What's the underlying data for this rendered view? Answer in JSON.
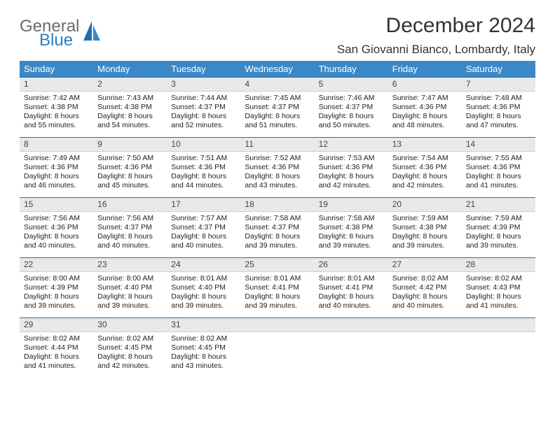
{
  "brand": {
    "word1": "General",
    "word2": "Blue",
    "color1": "#6b6b6b",
    "color2": "#2a7fbf"
  },
  "title": "December 2024",
  "location": "San Giovanni Bianco, Lombardy, Italy",
  "theme": {
    "header_bg": "#3a88c8",
    "header_fg": "#ffffff",
    "daynum_bg": "#e9e9e9",
    "rule": "#2a6ea5"
  },
  "weekdays": [
    "Sunday",
    "Monday",
    "Tuesday",
    "Wednesday",
    "Thursday",
    "Friday",
    "Saturday"
  ],
  "weeks": [
    [
      {
        "n": "1",
        "sr": "Sunrise: 7:42 AM",
        "ss": "Sunset: 4:38 PM",
        "d1": "Daylight: 8 hours",
        "d2": "and 55 minutes."
      },
      {
        "n": "2",
        "sr": "Sunrise: 7:43 AM",
        "ss": "Sunset: 4:38 PM",
        "d1": "Daylight: 8 hours",
        "d2": "and 54 minutes."
      },
      {
        "n": "3",
        "sr": "Sunrise: 7:44 AM",
        "ss": "Sunset: 4:37 PM",
        "d1": "Daylight: 8 hours",
        "d2": "and 52 minutes."
      },
      {
        "n": "4",
        "sr": "Sunrise: 7:45 AM",
        "ss": "Sunset: 4:37 PM",
        "d1": "Daylight: 8 hours",
        "d2": "and 51 minutes."
      },
      {
        "n": "5",
        "sr": "Sunrise: 7:46 AM",
        "ss": "Sunset: 4:37 PM",
        "d1": "Daylight: 8 hours",
        "d2": "and 50 minutes."
      },
      {
        "n": "6",
        "sr": "Sunrise: 7:47 AM",
        "ss": "Sunset: 4:36 PM",
        "d1": "Daylight: 8 hours",
        "d2": "and 48 minutes."
      },
      {
        "n": "7",
        "sr": "Sunrise: 7:48 AM",
        "ss": "Sunset: 4:36 PM",
        "d1": "Daylight: 8 hours",
        "d2": "and 47 minutes."
      }
    ],
    [
      {
        "n": "8",
        "sr": "Sunrise: 7:49 AM",
        "ss": "Sunset: 4:36 PM",
        "d1": "Daylight: 8 hours",
        "d2": "and 46 minutes."
      },
      {
        "n": "9",
        "sr": "Sunrise: 7:50 AM",
        "ss": "Sunset: 4:36 PM",
        "d1": "Daylight: 8 hours",
        "d2": "and 45 minutes."
      },
      {
        "n": "10",
        "sr": "Sunrise: 7:51 AM",
        "ss": "Sunset: 4:36 PM",
        "d1": "Daylight: 8 hours",
        "d2": "and 44 minutes."
      },
      {
        "n": "11",
        "sr": "Sunrise: 7:52 AM",
        "ss": "Sunset: 4:36 PM",
        "d1": "Daylight: 8 hours",
        "d2": "and 43 minutes."
      },
      {
        "n": "12",
        "sr": "Sunrise: 7:53 AM",
        "ss": "Sunset: 4:36 PM",
        "d1": "Daylight: 8 hours",
        "d2": "and 42 minutes."
      },
      {
        "n": "13",
        "sr": "Sunrise: 7:54 AM",
        "ss": "Sunset: 4:36 PM",
        "d1": "Daylight: 8 hours",
        "d2": "and 42 minutes."
      },
      {
        "n": "14",
        "sr": "Sunrise: 7:55 AM",
        "ss": "Sunset: 4:36 PM",
        "d1": "Daylight: 8 hours",
        "d2": "and 41 minutes."
      }
    ],
    [
      {
        "n": "15",
        "sr": "Sunrise: 7:56 AM",
        "ss": "Sunset: 4:36 PM",
        "d1": "Daylight: 8 hours",
        "d2": "and 40 minutes."
      },
      {
        "n": "16",
        "sr": "Sunrise: 7:56 AM",
        "ss": "Sunset: 4:37 PM",
        "d1": "Daylight: 8 hours",
        "d2": "and 40 minutes."
      },
      {
        "n": "17",
        "sr": "Sunrise: 7:57 AM",
        "ss": "Sunset: 4:37 PM",
        "d1": "Daylight: 8 hours",
        "d2": "and 40 minutes."
      },
      {
        "n": "18",
        "sr": "Sunrise: 7:58 AM",
        "ss": "Sunset: 4:37 PM",
        "d1": "Daylight: 8 hours",
        "d2": "and 39 minutes."
      },
      {
        "n": "19",
        "sr": "Sunrise: 7:58 AM",
        "ss": "Sunset: 4:38 PM",
        "d1": "Daylight: 8 hours",
        "d2": "and 39 minutes."
      },
      {
        "n": "20",
        "sr": "Sunrise: 7:59 AM",
        "ss": "Sunset: 4:38 PM",
        "d1": "Daylight: 8 hours",
        "d2": "and 39 minutes."
      },
      {
        "n": "21",
        "sr": "Sunrise: 7:59 AM",
        "ss": "Sunset: 4:39 PM",
        "d1": "Daylight: 8 hours",
        "d2": "and 39 minutes."
      }
    ],
    [
      {
        "n": "22",
        "sr": "Sunrise: 8:00 AM",
        "ss": "Sunset: 4:39 PM",
        "d1": "Daylight: 8 hours",
        "d2": "and 39 minutes."
      },
      {
        "n": "23",
        "sr": "Sunrise: 8:00 AM",
        "ss": "Sunset: 4:40 PM",
        "d1": "Daylight: 8 hours",
        "d2": "and 39 minutes."
      },
      {
        "n": "24",
        "sr": "Sunrise: 8:01 AM",
        "ss": "Sunset: 4:40 PM",
        "d1": "Daylight: 8 hours",
        "d2": "and 39 minutes."
      },
      {
        "n": "25",
        "sr": "Sunrise: 8:01 AM",
        "ss": "Sunset: 4:41 PM",
        "d1": "Daylight: 8 hours",
        "d2": "and 39 minutes."
      },
      {
        "n": "26",
        "sr": "Sunrise: 8:01 AM",
        "ss": "Sunset: 4:41 PM",
        "d1": "Daylight: 8 hours",
        "d2": "and 40 minutes."
      },
      {
        "n": "27",
        "sr": "Sunrise: 8:02 AM",
        "ss": "Sunset: 4:42 PM",
        "d1": "Daylight: 8 hours",
        "d2": "and 40 minutes."
      },
      {
        "n": "28",
        "sr": "Sunrise: 8:02 AM",
        "ss": "Sunset: 4:43 PM",
        "d1": "Daylight: 8 hours",
        "d2": "and 41 minutes."
      }
    ],
    [
      {
        "n": "29",
        "sr": "Sunrise: 8:02 AM",
        "ss": "Sunset: 4:44 PM",
        "d1": "Daylight: 8 hours",
        "d2": "and 41 minutes."
      },
      {
        "n": "30",
        "sr": "Sunrise: 8:02 AM",
        "ss": "Sunset: 4:45 PM",
        "d1": "Daylight: 8 hours",
        "d2": "and 42 minutes."
      },
      {
        "n": "31",
        "sr": "Sunrise: 8:02 AM",
        "ss": "Sunset: 4:45 PM",
        "d1": "Daylight: 8 hours",
        "d2": "and 43 minutes."
      },
      {
        "empty": true
      },
      {
        "empty": true
      },
      {
        "empty": true
      },
      {
        "empty": true
      }
    ]
  ]
}
